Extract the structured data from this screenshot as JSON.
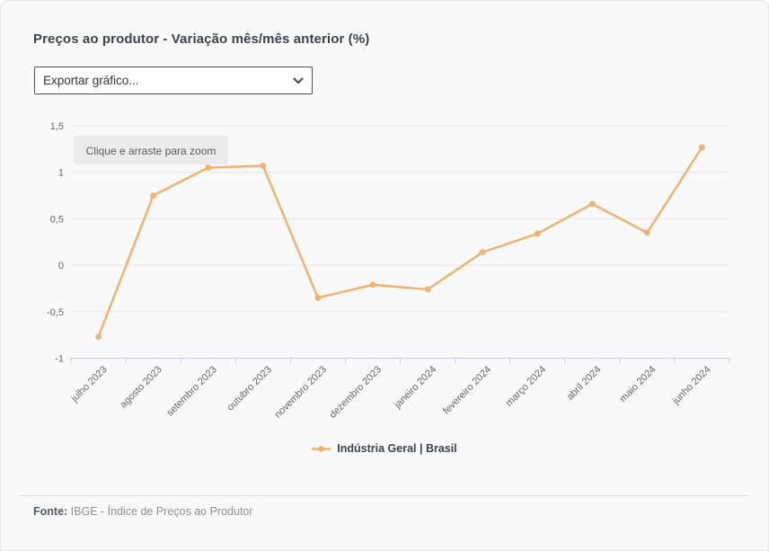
{
  "header": {
    "title": "Preços ao produtor - Variação mês/mês anterior (%)"
  },
  "export_select": {
    "value": "Exportar gráfico..."
  },
  "legend": {
    "label": "Indústria Geral | Brasil"
  },
  "footer": {
    "label": "Fonte:",
    "text": " IBGE - Índice de Preços ao Produtor"
  },
  "colors": {
    "series": "#f0b26e",
    "grid": "#e6e6e6",
    "axis": "#ccccdd",
    "tick_text": "#666666",
    "zoom_hint_bg": "#ebebeb",
    "card_bg": "#f9f9f9"
  },
  "chart_data": {
    "type": "line",
    "title": "Preços ao produtor - Variação mês/mês anterior (%)",
    "xlabel": "",
    "ylabel": "",
    "categories": [
      "julho 2023",
      "agosto 2023",
      "setembro 2023",
      "outubro 2023",
      "novembro 2023",
      "dezembro 2023",
      "janeiro 2024",
      "fevereiro 2024",
      "março 2024",
      "abril 2024",
      "maio 2024",
      "junho 2024"
    ],
    "series": [
      {
        "name": "Indústria Geral | Brasil",
        "color": "#f0b26e",
        "values": [
          -0.77,
          0.75,
          1.05,
          1.07,
          -0.35,
          -0.21,
          -0.26,
          0.14,
          0.34,
          0.66,
          0.35,
          1.27
        ]
      }
    ],
    "ylim": [
      -1,
      1.5
    ],
    "yticks": {
      "values": [
        1.5,
        1,
        0.5,
        0,
        -0.5,
        -1
      ],
      "labels": [
        "1,5",
        "1",
        "0,5",
        "0",
        "-0,5",
        "-1"
      ]
    },
    "grid": true,
    "legend_position": "bottom",
    "zoom_hint": "Clique e arraste para zoom"
  }
}
